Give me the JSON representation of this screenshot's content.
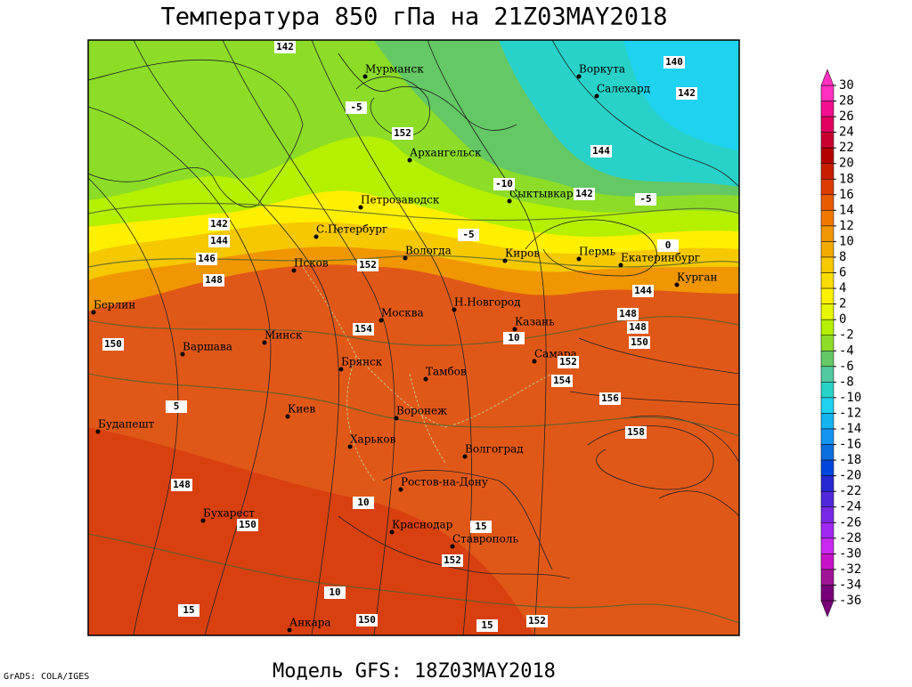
{
  "title": "Температура 850 гПа на 21Z03MAY2018",
  "model": "Модель GFS: 18Z03MAY2018",
  "credit": "GrADS: COLA/IGES",
  "colorbar": {
    "labels": [
      30,
      28,
      26,
      24,
      22,
      20,
      18,
      16,
      14,
      12,
      10,
      8,
      6,
      4,
      2,
      0,
      -2,
      -4,
      -6,
      -8,
      -10,
      -12,
      -14,
      -16,
      -18,
      -20,
      -22,
      -24,
      -26,
      -28,
      -30,
      -32,
      -34,
      -36
    ],
    "colors": [
      "#ff30c0",
      "#f01090",
      "#e00060",
      "#c80030",
      "#b40000",
      "#c81e00",
      "#dc3c00",
      "#e65a00",
      "#f07800",
      "#f09600",
      "#f0aa00",
      "#f5c800",
      "#fadc00",
      "#fff000",
      "#e6f500",
      "#b4f000",
      "#8cdc28",
      "#64c864",
      "#50c8a0",
      "#28d2c8",
      "#1ed2f0",
      "#14b4f0",
      "#1496f0",
      "#0a6edc",
      "#0046dc",
      "#2828d2",
      "#5028dc",
      "#7828e6",
      "#a028f0",
      "#c828f0",
      "#c814c8",
      "#a01496",
      "#780078"
    ]
  },
  "cities": [
    "Мурманск",
    "Воркута",
    "Салехард",
    "Архангельск",
    "Петрозаводск",
    "Сыктывкар",
    "С.Петербург",
    "Вологда",
    "Киров",
    "Пермь",
    "Екатеринбург",
    "Курган",
    "Псков",
    "Берлин",
    "Москва",
    "Н.Новгород",
    "Казань",
    "Варшава",
    "Минск",
    "Самара",
    "Брянск",
    "Тамбов",
    "Киев",
    "Воронеж",
    "Будапешт",
    "Харьков",
    "Волгоград",
    "Ростов-на-Дону",
    "Бухарест",
    "Краснодар",
    "Ставрополь",
    "Анкара"
  ],
  "contour_labels": [
    142,
    140,
    142,
    152,
    144,
    142,
    142,
    144,
    146,
    148,
    152,
    144,
    148,
    148,
    150,
    150,
    154,
    152,
    154,
    156,
    158,
    148,
    150,
    152,
    152,
    150,
    -5,
    -10,
    -5,
    -5,
    10,
    5,
    10,
    15,
    10,
    15,
    15,
    0
  ]
}
